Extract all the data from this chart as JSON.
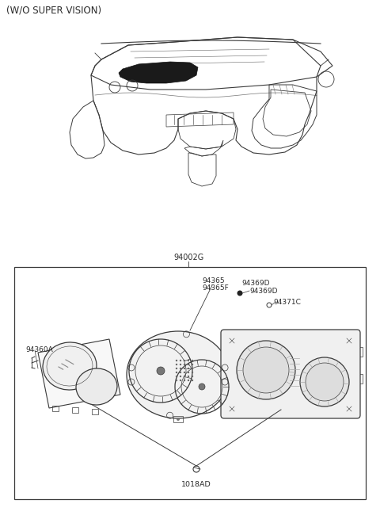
{
  "title": "(W/O SUPER VISION)",
  "bg_color": "#ffffff",
  "line_color": "#3a3a3a",
  "text_color": "#2a2a2a",
  "part_label_94002G": "94002G",
  "part_label_94360A": "94360A",
  "part_label_94365": "94365",
  "part_label_94365F": "94365F",
  "part_label_94369D_1": "94369D",
  "part_label_94369D_2": "94369D",
  "part_label_94371C": "94371C",
  "part_label_1018AD": "1018AD",
  "font_size_title": 8.5,
  "font_size_partnum": 6.5
}
